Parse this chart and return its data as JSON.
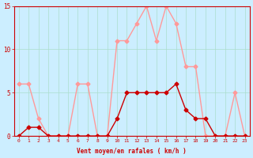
{
  "hours": [
    0,
    1,
    2,
    3,
    4,
    5,
    6,
    7,
    8,
    9,
    10,
    11,
    12,
    13,
    14,
    15,
    16,
    17,
    18,
    19,
    20,
    21,
    22,
    23
  ],
  "wind_avg": [
    0,
    1,
    1,
    0,
    0,
    0,
    0,
    0,
    0,
    0,
    2,
    5,
    5,
    5,
    5,
    5,
    6,
    3,
    2,
    2,
    0,
    0,
    0,
    0
  ],
  "wind_gust": [
    6,
    6,
    2,
    0,
    0,
    0,
    6,
    6,
    0,
    0,
    11,
    11,
    13,
    15,
    11,
    15,
    13,
    8,
    8,
    0,
    0,
    0,
    5,
    0
  ],
  "xlabel": "Vent moyen/en rafales ( km/h )",
  "ylim": [
    0,
    15
  ],
  "xlim": [
    0,
    23
  ],
  "yticks": [
    0,
    5,
    10,
    15
  ],
  "bg_color": "#cceeff",
  "grid_color": "#aaddcc",
  "avg_color": "#cc0000",
  "gust_color": "#ff9999"
}
